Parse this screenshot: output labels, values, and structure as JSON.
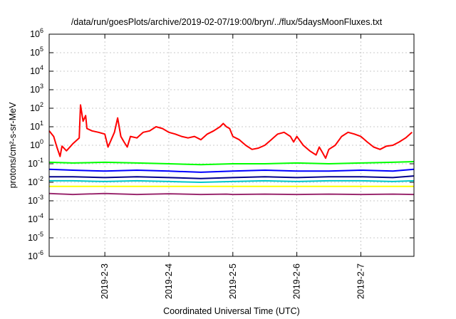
{
  "chart_data": {
    "type": "line",
    "title": "/data/run/goesPlots/archive/2019-02-07/19:00/bryn/../flux/5daysMoonFluxes.txt",
    "xlabel": "Coordinated Universal Time (UTC)",
    "ylabel": "protons/cm²-s-sr-MeV",
    "y_scale": "log",
    "ylim": [
      1e-06,
      1000000.0
    ],
    "xlim": [
      2.13,
      7.83
    ],
    "grid": true,
    "legend": "none",
    "y_ticks": [
      {
        "value": -6,
        "base": "10",
        "exp": "-6"
      },
      {
        "value": -5,
        "base": "10",
        "exp": "-5"
      },
      {
        "value": -4,
        "base": "10",
        "exp": "-4"
      },
      {
        "value": -3,
        "base": "10",
        "exp": "-3"
      },
      {
        "value": -2,
        "base": "10",
        "exp": "-2"
      },
      {
        "value": -1,
        "base": "10",
        "exp": "-1"
      },
      {
        "value": 0,
        "base": "10",
        "exp": "0"
      },
      {
        "value": 1,
        "base": "10",
        "exp": "1"
      },
      {
        "value": 2,
        "base": "10",
        "exp": "2"
      },
      {
        "value": 3,
        "base": "10",
        "exp": "3"
      },
      {
        "value": 4,
        "base": "10",
        "exp": "4"
      },
      {
        "value": 5,
        "base": "10",
        "exp": "5"
      },
      {
        "value": 6,
        "base": "10",
        "exp": "6"
      }
    ],
    "x_ticks": [
      {
        "value": 3,
        "label": "2019-2-3"
      },
      {
        "value": 4,
        "label": "2019-2-4"
      },
      {
        "value": 5,
        "label": "2019-2-5"
      },
      {
        "value": 6,
        "label": "2019-2-6"
      },
      {
        "value": 7,
        "label": "2019-2-7"
      }
    ],
    "series": [
      {
        "color": "#ff0000",
        "points": [
          [
            2.13,
            6
          ],
          [
            2.2,
            3
          ],
          [
            2.25,
            0.8
          ],
          [
            2.3,
            0.25
          ],
          [
            2.33,
            0.9
          ],
          [
            2.4,
            0.5
          ],
          [
            2.5,
            1.2
          ],
          [
            2.6,
            2.5
          ],
          [
            2.62,
            150
          ],
          [
            2.66,
            20
          ],
          [
            2.7,
            40
          ],
          [
            2.72,
            8
          ],
          [
            2.8,
            6
          ],
          [
            2.9,
            5
          ],
          [
            3.0,
            4
          ],
          [
            3.05,
            0.8
          ],
          [
            3.1,
            2
          ],
          [
            3.15,
            5
          ],
          [
            3.2,
            30
          ],
          [
            3.25,
            3
          ],
          [
            3.3,
            1.5
          ],
          [
            3.35,
            0.8
          ],
          [
            3.4,
            3
          ],
          [
            3.5,
            2.5
          ],
          [
            3.6,
            5
          ],
          [
            3.7,
            6
          ],
          [
            3.8,
            10
          ],
          [
            3.9,
            8
          ],
          [
            4.0,
            5
          ],
          [
            4.1,
            4
          ],
          [
            4.2,
            3
          ],
          [
            4.3,
            2.5
          ],
          [
            4.4,
            3
          ],
          [
            4.5,
            2
          ],
          [
            4.6,
            4
          ],
          [
            4.7,
            6
          ],
          [
            4.8,
            10
          ],
          [
            4.85,
            15
          ],
          [
            4.9,
            10
          ],
          [
            4.95,
            8
          ],
          [
            5.0,
            3
          ],
          [
            5.1,
            2
          ],
          [
            5.2,
            1
          ],
          [
            5.3,
            0.6
          ],
          [
            5.4,
            0.7
          ],
          [
            5.5,
            1
          ],
          [
            5.6,
            2
          ],
          [
            5.7,
            4
          ],
          [
            5.8,
            5
          ],
          [
            5.9,
            3
          ],
          [
            5.95,
            1.5
          ],
          [
            6.0,
            3
          ],
          [
            6.1,
            1
          ],
          [
            6.2,
            0.5
          ],
          [
            6.3,
            0.3
          ],
          [
            6.35,
            0.8
          ],
          [
            6.4,
            0.4
          ],
          [
            6.45,
            0.2
          ],
          [
            6.5,
            0.6
          ],
          [
            6.6,
            1
          ],
          [
            6.7,
            3
          ],
          [
            6.8,
            5
          ],
          [
            6.9,
            4
          ],
          [
            7.0,
            3
          ],
          [
            7.1,
            1.5
          ],
          [
            7.2,
            0.8
          ],
          [
            7.3,
            0.6
          ],
          [
            7.4,
            0.9
          ],
          [
            7.5,
            1
          ],
          [
            7.6,
            1.5
          ],
          [
            7.7,
            2.5
          ],
          [
            7.8,
            5
          ]
        ]
      },
      {
        "color": "#00ff00",
        "points": [
          [
            2.13,
            0.12
          ],
          [
            2.5,
            0.11
          ],
          [
            3.0,
            0.12
          ],
          [
            3.5,
            0.11
          ],
          [
            4.0,
            0.1
          ],
          [
            4.5,
            0.09
          ],
          [
            5.0,
            0.1
          ],
          [
            5.5,
            0.1
          ],
          [
            6.0,
            0.11
          ],
          [
            6.5,
            0.1
          ],
          [
            7.0,
            0.11
          ],
          [
            7.5,
            0.12
          ],
          [
            7.83,
            0.13
          ]
        ]
      },
      {
        "color": "#0000ff",
        "points": [
          [
            2.13,
            0.05
          ],
          [
            2.5,
            0.045
          ],
          [
            3.0,
            0.04
          ],
          [
            3.5,
            0.045
          ],
          [
            4.0,
            0.04
          ],
          [
            4.5,
            0.035
          ],
          [
            5.0,
            0.04
          ],
          [
            5.5,
            0.045
          ],
          [
            6.0,
            0.04
          ],
          [
            6.5,
            0.04
          ],
          [
            7.0,
            0.045
          ],
          [
            7.5,
            0.04
          ],
          [
            7.83,
            0.05
          ]
        ]
      },
      {
        "color": "#00008b",
        "points": [
          [
            2.13,
            0.02
          ],
          [
            2.5,
            0.02
          ],
          [
            3.0,
            0.018
          ],
          [
            3.5,
            0.02
          ],
          [
            4.0,
            0.018
          ],
          [
            4.5,
            0.016
          ],
          [
            5.0,
            0.018
          ],
          [
            5.5,
            0.02
          ],
          [
            6.0,
            0.018
          ],
          [
            6.5,
            0.02
          ],
          [
            7.0,
            0.02
          ],
          [
            7.5,
            0.018
          ],
          [
            7.83,
            0.022
          ]
        ]
      },
      {
        "color": "#00c8c8",
        "points": [
          [
            2.13,
            0.012
          ],
          [
            2.5,
            0.012
          ],
          [
            3.0,
            0.011
          ],
          [
            3.5,
            0.012
          ],
          [
            4.0,
            0.011
          ],
          [
            4.5,
            0.01
          ],
          [
            5.0,
            0.011
          ],
          [
            5.5,
            0.012
          ],
          [
            6.0,
            0.011
          ],
          [
            6.5,
            0.012
          ],
          [
            7.0,
            0.012
          ],
          [
            7.5,
            0.011
          ],
          [
            7.83,
            0.012
          ]
        ]
      },
      {
        "color": "#ffff00",
        "points": [
          [
            2.13,
            0.006
          ],
          [
            2.5,
            0.006
          ],
          [
            3.0,
            0.006
          ],
          [
            3.5,
            0.006
          ],
          [
            4.0,
            0.006
          ],
          [
            4.5,
            0.006
          ],
          [
            5.0,
            0.006
          ],
          [
            5.5,
            0.006
          ],
          [
            6.0,
            0.006
          ],
          [
            6.5,
            0.006
          ],
          [
            7.0,
            0.006
          ],
          [
            7.5,
            0.006
          ],
          [
            7.83,
            0.006
          ]
        ]
      },
      {
        "color": "#9b2a6f",
        "points": [
          [
            2.13,
            0.0025
          ],
          [
            2.5,
            0.0022
          ],
          [
            3.0,
            0.0025
          ],
          [
            3.5,
            0.0022
          ],
          [
            4.0,
            0.0024
          ],
          [
            4.5,
            0.0022
          ],
          [
            4.9,
            0.0023
          ],
          [
            5.0,
            0.0022
          ],
          [
            5.5,
            0.0023
          ],
          [
            6.0,
            0.0022
          ],
          [
            6.5,
            0.0023
          ],
          [
            7.0,
            0.0022
          ],
          [
            7.5,
            0.0023
          ],
          [
            7.83,
            0.0022
          ]
        ]
      }
    ]
  }
}
